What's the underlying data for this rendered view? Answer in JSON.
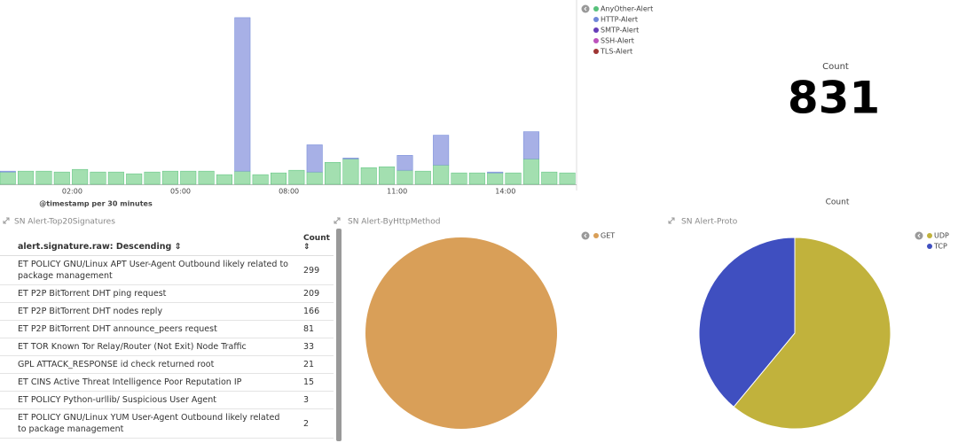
{
  "chart_data": [
    {
      "type": "bar",
      "stacked": true,
      "x_label": "@timestamp per 30 minutes",
      "categories": [
        null,
        null,
        null,
        null,
        "02:00",
        null,
        null,
        null,
        null,
        null,
        "05:00",
        null,
        null,
        null,
        null,
        null,
        "08:00",
        null,
        null,
        null,
        null,
        null,
        "11:00",
        null,
        null,
        null,
        null,
        null,
        "14:00",
        null,
        null,
        null
      ],
      "ylim": [
        0,
        200
      ],
      "series": [
        {
          "name": "AnyOther-Alert",
          "color": "#57c17b",
          "bar_color": "#a3dfb0",
          "values": [
            14,
            15,
            15,
            14,
            17,
            14,
            14,
            12,
            14,
            15,
            15,
            15,
            11,
            15,
            11,
            13,
            16,
            14,
            25,
            29,
            19,
            20,
            16,
            15,
            22,
            13,
            13,
            13,
            13,
            29,
            14,
            13
          ]
        },
        {
          "name": "HTTP-Alert",
          "color": "#6f87d8",
          "bar_color": "#a7b0e6",
          "values": [
            1,
            0,
            0,
            0,
            0,
            0,
            0,
            0,
            0,
            0,
            0,
            0,
            0,
            175,
            0,
            0,
            0,
            31,
            0,
            1,
            0,
            0,
            17,
            0,
            34,
            0,
            0,
            1,
            0,
            31,
            0,
            0
          ]
        },
        {
          "name": "SMTP-Alert",
          "color": "#663db8",
          "bar_color": "#663db8",
          "values": [
            0,
            0,
            0,
            0,
            0,
            0,
            0,
            0,
            0,
            0,
            0,
            0,
            0,
            0,
            0,
            0,
            0,
            0,
            0,
            0,
            0,
            0,
            0,
            0,
            0,
            0,
            0,
            0,
            0,
            0,
            0,
            0
          ]
        },
        {
          "name": "SSH-Alert",
          "color": "#bc52bc",
          "bar_color": "#bc52bc",
          "values": [
            0,
            0,
            0,
            0,
            0,
            0,
            0,
            0,
            0,
            0,
            0,
            0,
            0,
            0,
            0,
            0,
            0,
            0,
            0,
            0,
            0,
            0,
            0,
            0,
            0,
            0,
            0,
            0,
            0,
            0,
            0,
            0
          ]
        },
        {
          "name": "TLS-Alert",
          "color": "#9e3533",
          "bar_color": "#9e3533",
          "values": [
            0,
            0,
            0,
            0,
            0,
            0,
            0,
            0,
            0,
            0,
            0,
            0,
            0,
            0,
            0,
            0,
            0,
            0,
            0,
            0,
            0,
            0,
            0,
            0,
            0,
            0,
            0,
            0,
            0,
            0,
            0,
            0
          ]
        }
      ]
    },
    {
      "type": "pie",
      "panel_title": "SN Alert-ByHttpMethod",
      "categories": [
        "GET"
      ],
      "values": [
        100
      ],
      "colors": [
        "#d99f58"
      ]
    },
    {
      "type": "pie",
      "panel_title": "SN Alert-Proto",
      "title": "Count",
      "categories": [
        "UDP",
        "TCP"
      ],
      "values": [
        61,
        39
      ],
      "colors": [
        "#c1b23c",
        "#3f4fc0"
      ]
    }
  ],
  "metric": {
    "label": "Count",
    "value": 831
  },
  "table": {
    "title": "SN Alert-Top20Signatures",
    "columns": [
      "alert.signature.raw: Descending ⇕",
      "Count ⇕"
    ],
    "rows": [
      [
        "ET POLICY GNU/Linux APT User-Agent Outbound likely related to package management",
        299
      ],
      [
        "ET P2P BitTorrent DHT ping request",
        209
      ],
      [
        "ET P2P BitTorrent DHT nodes reply",
        166
      ],
      [
        "ET P2P BitTorrent DHT announce_peers request",
        81
      ],
      [
        "ET TOR Known Tor Relay/Router (Not Exit) Node Traffic",
        33
      ],
      [
        "GPL ATTACK_RESPONSE id check returned root",
        21
      ],
      [
        "ET CINS Active Threat Intelligence Poor Reputation IP",
        15
      ],
      [
        "ET POLICY Python-urllib/ Suspicious User Agent",
        3
      ],
      [
        "ET POLICY GNU/Linux YUM User-Agent Outbound likely related to package management",
        2
      ]
    ]
  }
}
